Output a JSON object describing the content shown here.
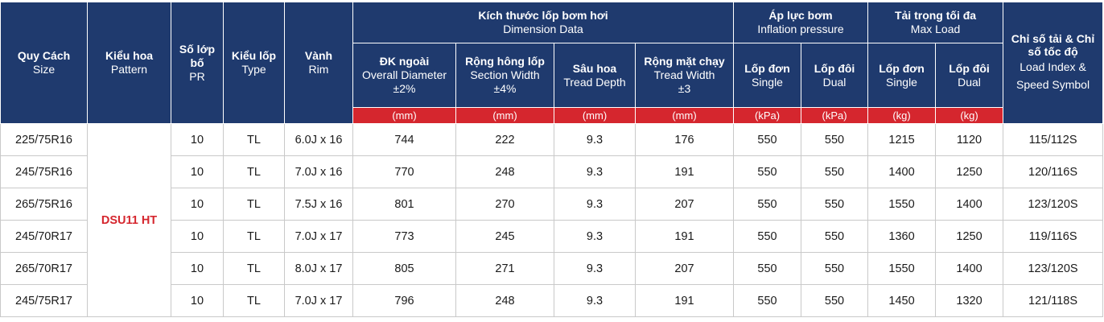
{
  "headers": {
    "size": {
      "vn": "Quy Cách",
      "en": "Size"
    },
    "pattern": {
      "vn": "Kiểu hoa",
      "en": "Pattern"
    },
    "pr": {
      "vn": "Số lớp bố",
      "en": "PR"
    },
    "type": {
      "vn": "Kiểu lốp",
      "en": "Type"
    },
    "rim": {
      "vn": "Vành",
      "en": "Rim"
    },
    "dimension": {
      "vn": "Kích thước lốp bơm hơi",
      "en": "Dimension Data"
    },
    "overall_diameter": {
      "vn": "ĐK ngoài",
      "en": "Overall Diameter",
      "tol": "±2%"
    },
    "section_width": {
      "vn": "Rộng hông lốp",
      "en": "Section Width",
      "tol": "±4%"
    },
    "tread_depth": {
      "vn": "Sâu hoa",
      "en": "Tread Depth"
    },
    "tread_width": {
      "vn": "Rộng mặt chạy",
      "en": "Tread Width",
      "tol": "±3"
    },
    "inflation": {
      "vn": "Áp lực bơm",
      "en": "Inflation pressure"
    },
    "max_load": {
      "vn": "Tải trọng tối đa",
      "en": "Max Load"
    },
    "single": {
      "vn": "Lốp đơn",
      "en": "Single"
    },
    "dual": {
      "vn": "Lốp đôi",
      "en": "Dual"
    },
    "load_index": {
      "vn": "Chỉ số tải & Chỉ số tốc độ",
      "en": "Load Index & Speed Symbol"
    }
  },
  "units": [
    "(mm)",
    "(mm)",
    "(mm)",
    "(mm)",
    "(kPa)",
    "(kPa)",
    "(kg)",
    "(kg)"
  ],
  "pattern_name": "DSU11 HT",
  "rows": [
    [
      "225/75R16",
      "10",
      "TL",
      "6.0J x 16",
      "744",
      "222",
      "9.3",
      "176",
      "550",
      "550",
      "1215",
      "1120",
      "115/112S"
    ],
    [
      "245/75R16",
      "10",
      "TL",
      "7.0J x 16",
      "770",
      "248",
      "9.3",
      "191",
      "550",
      "550",
      "1400",
      "1250",
      "120/116S"
    ],
    [
      "265/75R16",
      "10",
      "TL",
      "7.5J x 16",
      "801",
      "270",
      "9.3",
      "207",
      "550",
      "550",
      "1550",
      "1400",
      "123/120S"
    ],
    [
      "245/70R17",
      "10",
      "TL",
      "7.0J x 17",
      "773",
      "245",
      "9.3",
      "191",
      "550",
      "550",
      "1360",
      "1250",
      "119/116S"
    ],
    [
      "265/70R17",
      "10",
      "TL",
      "8.0J x 17",
      "805",
      "271",
      "9.3",
      "207",
      "550",
      "550",
      "1550",
      "1400",
      "123/120S"
    ],
    [
      "245/75R17",
      "10",
      "TL",
      "7.0J x 17",
      "796",
      "248",
      "9.3",
      "191",
      "550",
      "550",
      "1450",
      "1320",
      "121/118S"
    ]
  ]
}
